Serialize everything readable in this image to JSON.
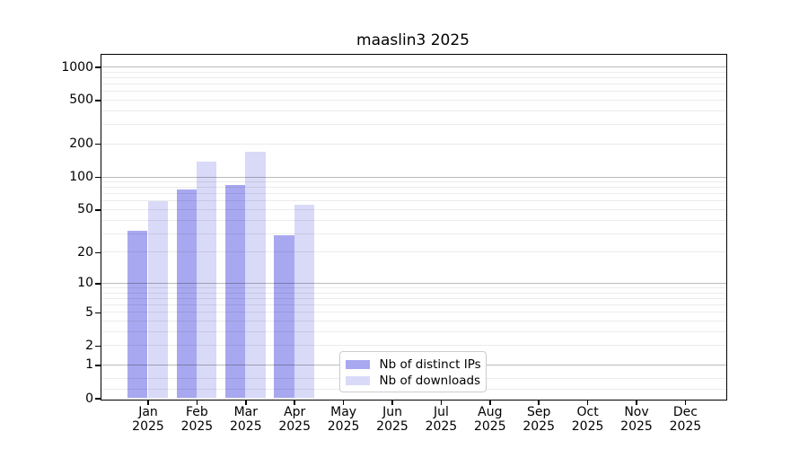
{
  "chart_data": {
    "type": "bar",
    "title": "maaslin3 2025",
    "categories": [
      "Jan",
      "Feb",
      "Mar",
      "Apr",
      "May",
      "Jun",
      "Jul",
      "Aug",
      "Sep",
      "Oct",
      "Nov",
      "Dec"
    ],
    "category_year": "2025",
    "series": [
      {
        "name": "Nb of distinct IPs",
        "color": "#a8a8f0",
        "values": [
          32,
          77,
          84,
          29,
          0,
          0,
          0,
          0,
          0,
          0,
          0,
          0
        ]
      },
      {
        "name": "Nb of downloads",
        "color": "#d9d9f8",
        "values": [
          60,
          137,
          170,
          56,
          0,
          0,
          0,
          0,
          0,
          0,
          0,
          0
        ]
      }
    ],
    "yticks": [
      1000,
      500,
      200,
      100,
      50,
      20,
      10,
      5,
      2,
      1,
      0
    ],
    "grid_major": [
      1,
      10,
      100,
      1000
    ],
    "grid_minor": [
      0.2,
      0.5,
      2,
      3,
      4,
      5,
      6,
      7,
      8,
      9,
      20,
      30,
      40,
      50,
      60,
      70,
      80,
      90,
      200,
      300,
      400,
      500,
      600,
      700,
      800,
      900
    ],
    "scale": "log1p",
    "ylim": [
      0,
      1300
    ],
    "xlabel": "",
    "ylabel": "",
    "grid": true,
    "legend_position": "lower center"
  },
  "colors": {
    "background": "#ffffff",
    "spine": "#000000",
    "text": "#000000",
    "legend_border": "#cccccc",
    "bar_distinct_ips": "#a8a8f0",
    "bar_downloads": "#d9d9f8"
  }
}
